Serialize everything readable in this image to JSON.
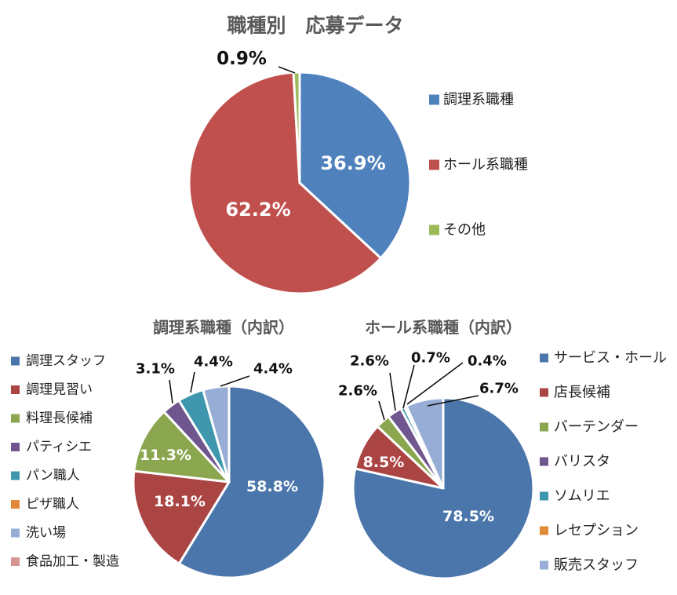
{
  "chart_data": [
    {
      "type": "pie",
      "title": "職種別　応募データ",
      "categories": [
        "調理系職種",
        "ホール系職種",
        "その他"
      ],
      "values": [
        36.9,
        62.2,
        0.9
      ],
      "labels": [
        "36.9%",
        "62.2%",
        "0.9%"
      ],
      "colors": [
        "#4f81bd",
        "#c0504d",
        "#9bbb59"
      ],
      "legend": "right"
    },
    {
      "type": "pie",
      "title": "調理系職種（内訳）",
      "categories": [
        "調理スタッフ",
        "調理見習い",
        "料理長候補",
        "パティシエ",
        "パン職人",
        "ピザ職人",
        "洗い場",
        "食品加工・製造"
      ],
      "values": [
        58.8,
        18.1,
        11.3,
        3.1,
        4.4,
        0,
        4.4,
        0
      ],
      "labels": [
        "58.8%",
        "18.1%",
        "11.3%",
        "3.1%",
        "4.4%",
        "",
        "4.4%",
        ""
      ],
      "colors": [
        "#4a76ab",
        "#aa4544",
        "#8aa64e",
        "#6f568f",
        "#3f97ae",
        "#e18a39",
        "#97add5",
        "#d59594"
      ],
      "legend": "left"
    },
    {
      "type": "pie",
      "title": "ホール系職種（内訳）",
      "categories": [
        "サービス・ホール",
        "店長候補",
        "バーテンダー",
        "バリスタ",
        "ソムリエ",
        "レセプション",
        "販売スタッフ"
      ],
      "values": [
        78.5,
        8.5,
        2.6,
        2.6,
        0.7,
        0.4,
        6.7
      ],
      "labels": [
        "78.5%",
        "8.5%",
        "2.6%",
        "2.6%",
        "0.7%",
        "0.4%",
        "6.7%"
      ],
      "colors": [
        "#4a76ab",
        "#aa4544",
        "#8aa64e",
        "#6f568f",
        "#3f97ae",
        "#e18a39",
        "#97add5"
      ],
      "legend": "right"
    }
  ]
}
